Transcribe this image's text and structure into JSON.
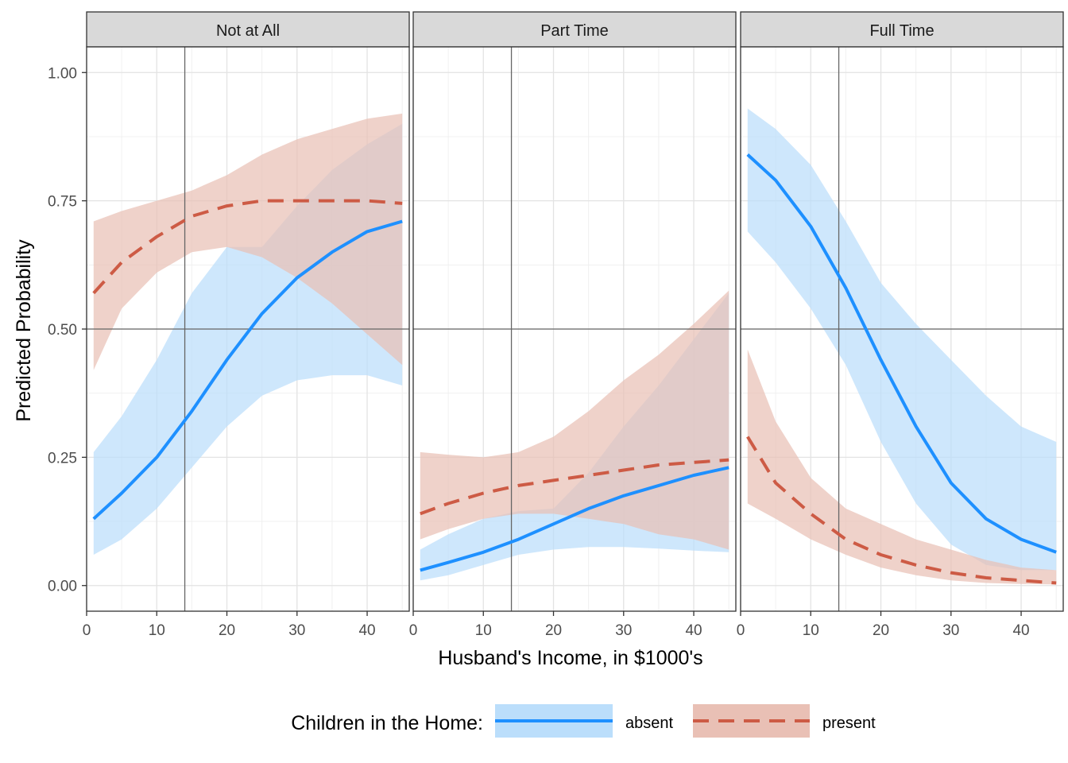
{
  "chart_data": {
    "type": "line",
    "xlabel": "Husband's Income, in $1000's",
    "ylabel": "Predicted Probability",
    "xlim": [
      0,
      46
    ],
    "ylim": [
      -0.05,
      1.05
    ],
    "x_ticks": [
      0,
      10,
      20,
      30,
      40
    ],
    "y_ticks": [
      0,
      0.25,
      0.5,
      0.75,
      1.0
    ],
    "y_tick_labels": [
      "0.00",
      "0.25",
      "0.50",
      "0.75",
      "1.00"
    ],
    "reference_lines": {
      "x": 14,
      "y": 0.5
    },
    "grid": true,
    "legend": {
      "title": "Children in the Home:",
      "position": "bottom",
      "entries": [
        "absent",
        "present"
      ]
    },
    "x": [
      1,
      5,
      10,
      15,
      20,
      25,
      30,
      35,
      40,
      45
    ],
    "panels": [
      {
        "label": "Not at All",
        "series": [
          {
            "name": "absent",
            "color": "#1e90ff",
            "fill": "#bbdefb",
            "style": "solid",
            "values": [
              0.13,
              0.18,
              0.25,
              0.34,
              0.44,
              0.53,
              0.6,
              0.65,
              0.69,
              0.71
            ],
            "lower": [
              0.06,
              0.09,
              0.15,
              0.23,
              0.31,
              0.37,
              0.4,
              0.41,
              0.41,
              0.39
            ],
            "upper": [
              0.26,
              0.33,
              0.44,
              0.57,
              0.66,
              0.66,
              0.74,
              0.81,
              0.86,
              0.9
            ]
          },
          {
            "name": "present",
            "color": "#cd5b45",
            "fill": "#e9c0b5",
            "style": "dashed",
            "values": [
              0.57,
              0.63,
              0.68,
              0.72,
              0.74,
              0.75,
              0.75,
              0.75,
              0.75,
              0.745
            ],
            "lower": [
              0.42,
              0.54,
              0.61,
              0.65,
              0.66,
              0.64,
              0.6,
              0.55,
              0.49,
              0.43
            ],
            "upper": [
              0.71,
              0.73,
              0.75,
              0.77,
              0.8,
              0.84,
              0.87,
              0.89,
              0.91,
              0.92
            ]
          }
        ]
      },
      {
        "label": "Part Time",
        "series": [
          {
            "name": "absent",
            "color": "#1e90ff",
            "fill": "#bbdefb",
            "style": "solid",
            "values": [
              0.03,
              0.045,
              0.065,
              0.09,
              0.12,
              0.15,
              0.175,
              0.195,
              0.215,
              0.23
            ],
            "lower": [
              0.01,
              0.02,
              0.04,
              0.06,
              0.07,
              0.075,
              0.075,
              0.072,
              0.068,
              0.065
            ],
            "upper": [
              0.07,
              0.1,
              0.13,
              0.145,
              0.15,
              0.22,
              0.31,
              0.39,
              0.48,
              0.57
            ]
          },
          {
            "name": "present",
            "color": "#cd5b45",
            "fill": "#e9c0b5",
            "style": "dashed",
            "values": [
              0.14,
              0.16,
              0.18,
              0.195,
              0.205,
              0.215,
              0.225,
              0.235,
              0.24,
              0.245
            ],
            "lower": [
              0.09,
              0.11,
              0.13,
              0.14,
              0.14,
              0.13,
              0.12,
              0.1,
              0.09,
              0.07
            ],
            "upper": [
              0.26,
              0.255,
              0.25,
              0.26,
              0.29,
              0.34,
              0.4,
              0.45,
              0.51,
              0.575
            ]
          }
        ]
      },
      {
        "label": "Full Time",
        "series": [
          {
            "name": "absent",
            "color": "#1e90ff",
            "fill": "#bbdefb",
            "style": "solid",
            "values": [
              0.84,
              0.79,
              0.7,
              0.58,
              0.44,
              0.31,
              0.2,
              0.13,
              0.09,
              0.065
            ],
            "lower": [
              0.69,
              0.63,
              0.54,
              0.43,
              0.28,
              0.16,
              0.08,
              0.04,
              0.03,
              0.03
            ],
            "upper": [
              0.93,
              0.89,
              0.82,
              0.71,
              0.59,
              0.51,
              0.44,
              0.37,
              0.31,
              0.28
            ]
          },
          {
            "name": "present",
            "color": "#cd5b45",
            "fill": "#e9c0b5",
            "style": "dashed",
            "values": [
              0.29,
              0.2,
              0.14,
              0.09,
              0.06,
              0.04,
              0.025,
              0.015,
              0.01,
              0.005
            ],
            "lower": [
              0.16,
              0.13,
              0.09,
              0.06,
              0.035,
              0.02,
              0.01,
              0.005,
              0.003,
              0.002
            ],
            "upper": [
              0.46,
              0.32,
              0.21,
              0.15,
              0.12,
              0.09,
              0.07,
              0.05,
              0.035,
              0.03
            ]
          }
        ]
      }
    ]
  }
}
